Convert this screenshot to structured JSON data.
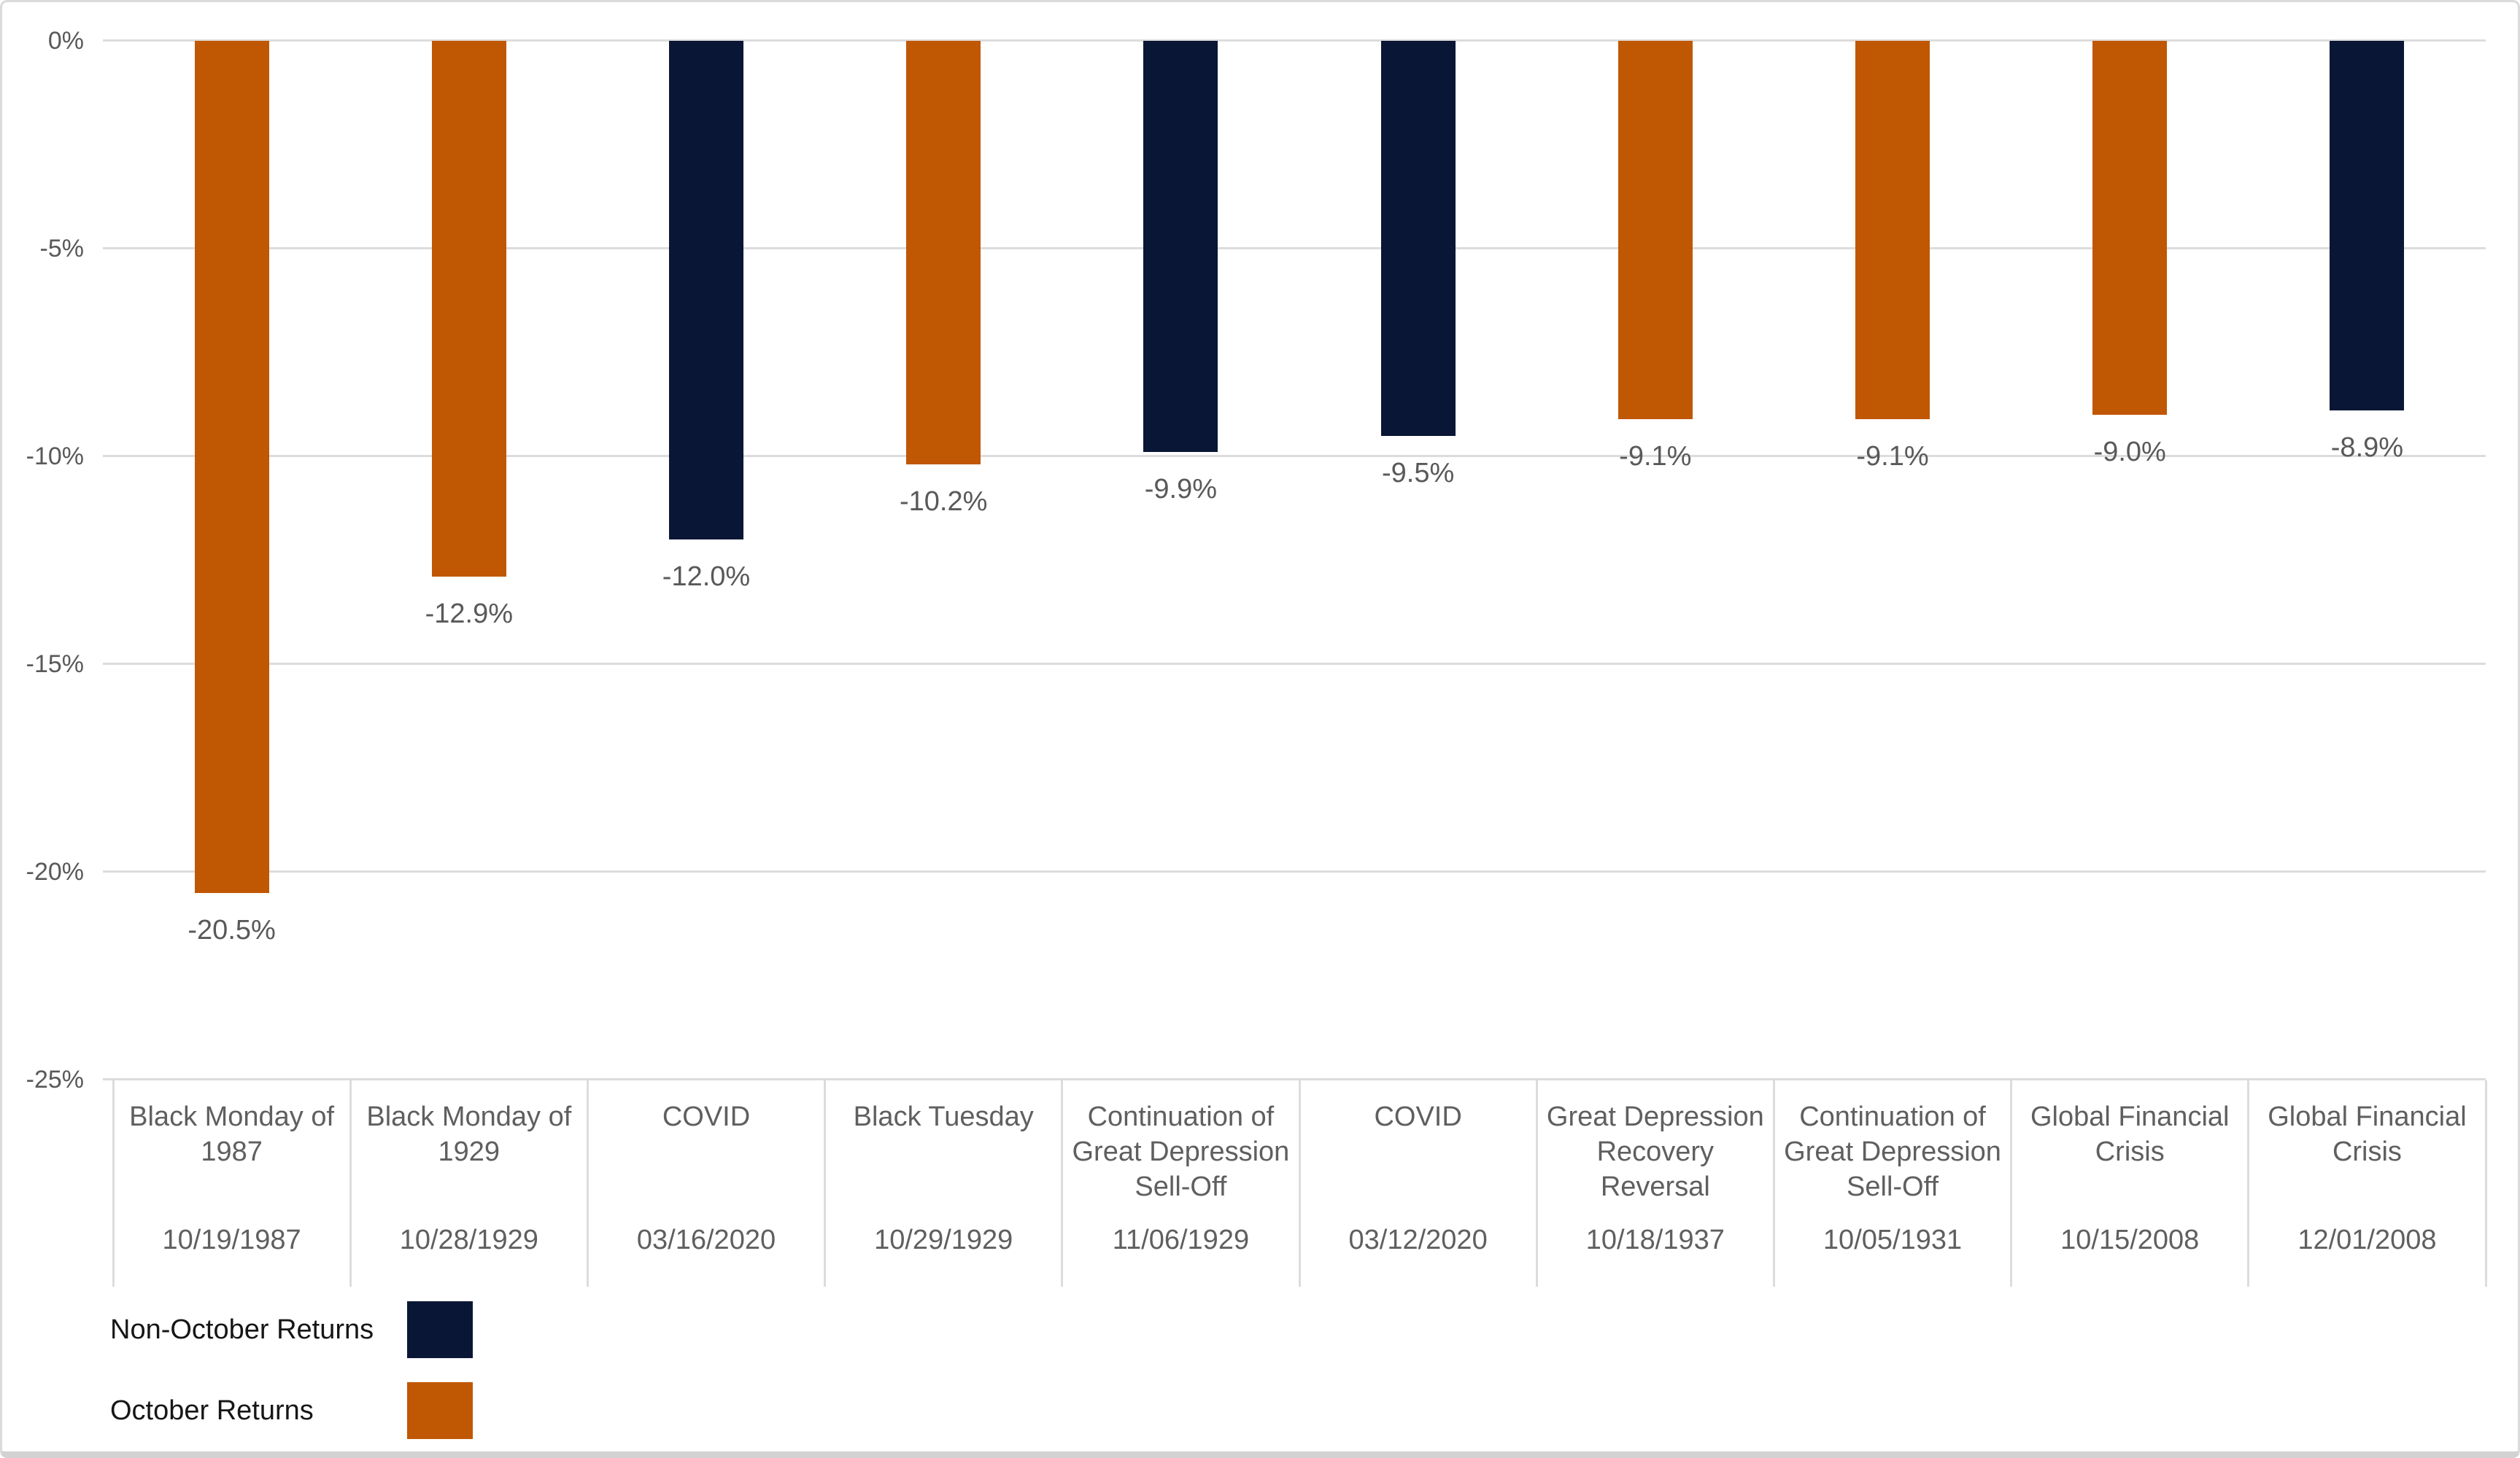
{
  "chart_data": {
    "type": "bar",
    "title": "",
    "xlabel": "",
    "ylabel": "",
    "y_axis": {
      "unit": "%",
      "min": -25,
      "max": 0,
      "tick_step": 5,
      "ticks": [
        "0%",
        "-5%",
        "-10%",
        "-15%",
        "-20%",
        "-25%"
      ],
      "grid": true
    },
    "legend": [
      {
        "label": "Non-October Returns",
        "color": "#0a1635"
      },
      {
        "label": "October Returns",
        "color": "#c05703"
      }
    ],
    "legend_position": "bottom-left",
    "bars": [
      {
        "event": "Black Monday of 1987",
        "date": "10/19/1987",
        "value": -20.5,
        "label": "-20.5%",
        "series": "October Returns"
      },
      {
        "event": "Black Monday of 1929",
        "date": "10/28/1929",
        "value": -12.9,
        "label": "-12.9%",
        "series": "October Returns"
      },
      {
        "event": "COVID",
        "date": "03/16/2020",
        "value": -12.0,
        "label": "-12.0%",
        "series": "Non-October Returns"
      },
      {
        "event": "Black Tuesday",
        "date": "10/29/1929",
        "value": -10.2,
        "label": "-10.2%",
        "series": "October Returns"
      },
      {
        "event": "Continuation of Great Depression Sell-Off",
        "date": "11/06/1929",
        "value": -9.9,
        "label": "-9.9%",
        "series": "Non-October Returns"
      },
      {
        "event": "COVID",
        "date": "03/12/2020",
        "value": -9.5,
        "label": "-9.5%",
        "series": "Non-October Returns"
      },
      {
        "event": "Great Depression Recovery Reversal",
        "date": "10/18/1937",
        "value": -9.1,
        "label": "-9.1%",
        "series": "October Returns"
      },
      {
        "event": "Continuation of Great Depression Sell-Off",
        "date": "10/05/1931",
        "value": -9.1,
        "label": "-9.1%",
        "series": "October Returns"
      },
      {
        "event": "Global Financial Crisis",
        "date": "10/15/2008",
        "value": -9.0,
        "label": "-9.0%",
        "series": "October Returns"
      },
      {
        "event": "Global Financial Crisis",
        "date": "12/01/2008",
        "value": -8.9,
        "label": "-8.9%",
        "series": "Non-October Returns"
      }
    ],
    "colors": {
      "non_october": "#0a1635",
      "october": "#c05703",
      "axis_text": "#595959",
      "gridline": "#dcdcdc"
    }
  }
}
